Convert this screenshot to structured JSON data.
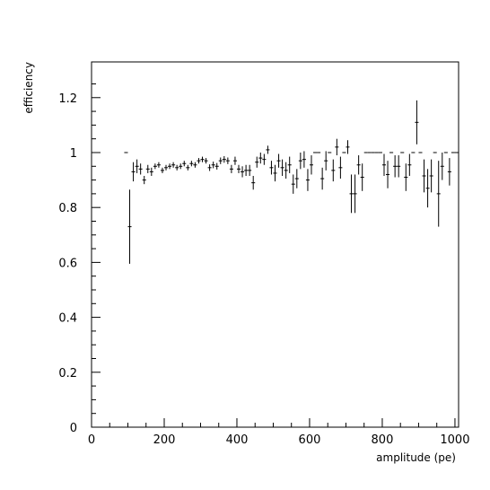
{
  "chart_data": {
    "type": "scatter",
    "title": "",
    "xlabel": "amplitude (pe)",
    "ylabel": "efficiency",
    "xlim": [
      0,
      1010
    ],
    "ylim": [
      0,
      1.33
    ],
    "grid": false,
    "legend": "none",
    "x_ticks": [
      0,
      200,
      400,
      600,
      800,
      1000
    ],
    "x_tick_labels": [
      "0",
      "200",
      "400",
      "600",
      "800",
      "1000"
    ],
    "y_ticks": [
      0,
      0.2,
      0.4,
      0.6,
      0.8,
      1,
      1.2
    ],
    "y_tick_labels": [
      "0",
      "0.2",
      "0.4",
      "0.6",
      "0.8",
      "1",
      "1.2"
    ],
    "x_bin_halfwidth": 5,
    "points": [
      {
        "x": 95,
        "y": 1.0,
        "err": 0
      },
      {
        "x": 105,
        "y": 0.73,
        "err": 0.135
      },
      {
        "x": 115,
        "y": 0.93,
        "err": 0.035
      },
      {
        "x": 125,
        "y": 0.95,
        "err": 0.025
      },
      {
        "x": 135,
        "y": 0.94,
        "err": 0.02
      },
      {
        "x": 145,
        "y": 0.9,
        "err": 0.015
      },
      {
        "x": 155,
        "y": 0.94,
        "err": 0.015
      },
      {
        "x": 165,
        "y": 0.93,
        "err": 0.015
      },
      {
        "x": 175,
        "y": 0.95,
        "err": 0.01
      },
      {
        "x": 185,
        "y": 0.955,
        "err": 0.01
      },
      {
        "x": 195,
        "y": 0.935,
        "err": 0.01
      },
      {
        "x": 205,
        "y": 0.945,
        "err": 0.01
      },
      {
        "x": 215,
        "y": 0.95,
        "err": 0.01
      },
      {
        "x": 225,
        "y": 0.955,
        "err": 0.01
      },
      {
        "x": 235,
        "y": 0.945,
        "err": 0.01
      },
      {
        "x": 245,
        "y": 0.95,
        "err": 0.01
      },
      {
        "x": 255,
        "y": 0.96,
        "err": 0.01
      },
      {
        "x": 265,
        "y": 0.945,
        "err": 0.01
      },
      {
        "x": 275,
        "y": 0.96,
        "err": 0.01
      },
      {
        "x": 285,
        "y": 0.955,
        "err": 0.01
      },
      {
        "x": 295,
        "y": 0.97,
        "err": 0.01
      },
      {
        "x": 305,
        "y": 0.975,
        "err": 0.01
      },
      {
        "x": 315,
        "y": 0.97,
        "err": 0.01
      },
      {
        "x": 325,
        "y": 0.945,
        "err": 0.012
      },
      {
        "x": 335,
        "y": 0.955,
        "err": 0.012
      },
      {
        "x": 345,
        "y": 0.95,
        "err": 0.012
      },
      {
        "x": 355,
        "y": 0.97,
        "err": 0.012
      },
      {
        "x": 365,
        "y": 0.975,
        "err": 0.012
      },
      {
        "x": 375,
        "y": 0.97,
        "err": 0.012
      },
      {
        "x": 385,
        "y": 0.94,
        "err": 0.015
      },
      {
        "x": 395,
        "y": 0.97,
        "err": 0.015
      },
      {
        "x": 405,
        "y": 0.94,
        "err": 0.015
      },
      {
        "x": 415,
        "y": 0.93,
        "err": 0.02
      },
      {
        "x": 425,
        "y": 0.935,
        "err": 0.02
      },
      {
        "x": 435,
        "y": 0.935,
        "err": 0.02
      },
      {
        "x": 445,
        "y": 0.89,
        "err": 0.025
      },
      {
        "x": 455,
        "y": 0.965,
        "err": 0.02
      },
      {
        "x": 465,
        "y": 0.98,
        "err": 0.02
      },
      {
        "x": 475,
        "y": 0.975,
        "err": 0.02
      },
      {
        "x": 485,
        "y": 1.01,
        "err": 0.015
      },
      {
        "x": 495,
        "y": 0.945,
        "err": 0.025
      },
      {
        "x": 505,
        "y": 0.925,
        "err": 0.03
      },
      {
        "x": 515,
        "y": 0.97,
        "err": 0.025
      },
      {
        "x": 525,
        "y": 0.945,
        "err": 0.03
      },
      {
        "x": 535,
        "y": 0.935,
        "err": 0.03
      },
      {
        "x": 545,
        "y": 0.955,
        "err": 0.03
      },
      {
        "x": 555,
        "y": 0.885,
        "err": 0.035
      },
      {
        "x": 565,
        "y": 0.905,
        "err": 0.035
      },
      {
        "x": 575,
        "y": 0.97,
        "err": 0.03
      },
      {
        "x": 585,
        "y": 0.975,
        "err": 0.03
      },
      {
        "x": 595,
        "y": 0.9,
        "err": 0.04
      },
      {
        "x": 605,
        "y": 0.955,
        "err": 0.035
      },
      {
        "x": 615,
        "y": 1.0,
        "err": 0
      },
      {
        "x": 625,
        "y": 1.0,
        "err": 0
      },
      {
        "x": 635,
        "y": 0.905,
        "err": 0.04
      },
      {
        "x": 645,
        "y": 0.97,
        "err": 0.035
      },
      {
        "x": 655,
        "y": 1.0,
        "err": 0
      },
      {
        "x": 665,
        "y": 0.935,
        "err": 0.04
      },
      {
        "x": 675,
        "y": 1.02,
        "err": 0.03
      },
      {
        "x": 685,
        "y": 0.945,
        "err": 0.04
      },
      {
        "x": 695,
        "y": 1.0,
        "err": 0
      },
      {
        "x": 705,
        "y": 1.02,
        "err": 0.025
      },
      {
        "x": 715,
        "y": 0.85,
        "err": 0.07
      },
      {
        "x": 725,
        "y": 0.85,
        "err": 0.07
      },
      {
        "x": 735,
        "y": 0.955,
        "err": 0.035
      },
      {
        "x": 745,
        "y": 0.91,
        "err": 0.05
      },
      {
        "x": 755,
        "y": 1.0,
        "err": 0
      },
      {
        "x": 765,
        "y": 1.0,
        "err": 0
      },
      {
        "x": 775,
        "y": 1.0,
        "err": 0
      },
      {
        "x": 785,
        "y": 1.0,
        "err": 0
      },
      {
        "x": 795,
        "y": 1.0,
        "err": 0
      },
      {
        "x": 805,
        "y": 0.955,
        "err": 0.04
      },
      {
        "x": 815,
        "y": 0.92,
        "err": 0.05
      },
      {
        "x": 825,
        "y": 1.0,
        "err": 0
      },
      {
        "x": 835,
        "y": 0.95,
        "err": 0.04
      },
      {
        "x": 845,
        "y": 0.95,
        "err": 0.04
      },
      {
        "x": 855,
        "y": 1.0,
        "err": 0
      },
      {
        "x": 865,
        "y": 0.91,
        "err": 0.05
      },
      {
        "x": 875,
        "y": 0.955,
        "err": 0.04
      },
      {
        "x": 885,
        "y": 1.0,
        "err": 0
      },
      {
        "x": 895,
        "y": 1.11,
        "err": 0.08
      },
      {
        "x": 905,
        "y": 1.0,
        "err": 0
      },
      {
        "x": 915,
        "y": 0.915,
        "err": 0.06
      },
      {
        "x": 925,
        "y": 0.87,
        "err": 0.07
      },
      {
        "x": 935,
        "y": 0.915,
        "err": 0.06
      },
      {
        "x": 945,
        "y": 1.0,
        "err": 0
      },
      {
        "x": 955,
        "y": 0.85,
        "err": 0.12
      },
      {
        "x": 965,
        "y": 0.95,
        "err": 0.05
      },
      {
        "x": 975,
        "y": 1.0,
        "err": 0
      },
      {
        "x": 985,
        "y": 0.93,
        "err": 0.05
      },
      {
        "x": 995,
        "y": 1.0,
        "err": 0
      },
      {
        "x": 1005,
        "y": 1.0,
        "err": 0
      }
    ]
  }
}
